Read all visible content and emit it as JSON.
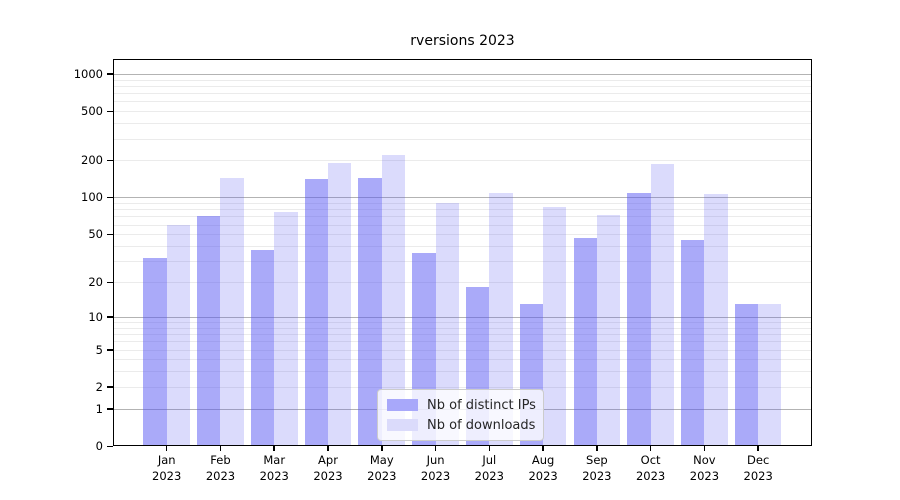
{
  "chart_data": {
    "type": "bar",
    "title": "rversions 2023",
    "categories": [
      "Jan",
      "Feb",
      "Mar",
      "Apr",
      "May",
      "Jun",
      "Jul",
      "Aug",
      "Sep",
      "Oct",
      "Nov",
      "Dec"
    ],
    "category_year": "2023",
    "series": [
      {
        "name": "Nb of distinct IPs",
        "color": "#a8a8fa",
        "fill_rgba": "rgba(85,85,243,0.50)",
        "values": [
          32,
          70,
          37,
          141,
          145,
          35,
          18,
          13,
          47,
          109,
          45,
          13
        ]
      },
      {
        "name": "Nb of downloads",
        "color": "#dbdbfb",
        "fill_rgba": "rgba(85,85,243,0.21)",
        "values": [
          60,
          145,
          76,
          192,
          222,
          90,
          109,
          83,
          72,
          188,
          106,
          13
        ]
      }
    ],
    "xlabel": "",
    "ylabel": "",
    "y_axis": {
      "scale": "log1p",
      "tick_labels": [
        "0",
        "1",
        "2",
        "5",
        "10",
        "20",
        "50",
        "100",
        "200",
        "500",
        "1000"
      ],
      "tick_values": [
        0,
        1,
        2,
        5,
        10,
        20,
        50,
        100,
        200,
        500,
        1000
      ],
      "ylim": [
        0,
        1320
      ]
    },
    "grid": {
      "horizontal": true,
      "vertical": false,
      "major_values": [
        1,
        10,
        100,
        1000
      ],
      "major_color": "#b3b3b3",
      "minor_color": "#ebebeb"
    },
    "legend_position": "inside-bottom-center"
  }
}
